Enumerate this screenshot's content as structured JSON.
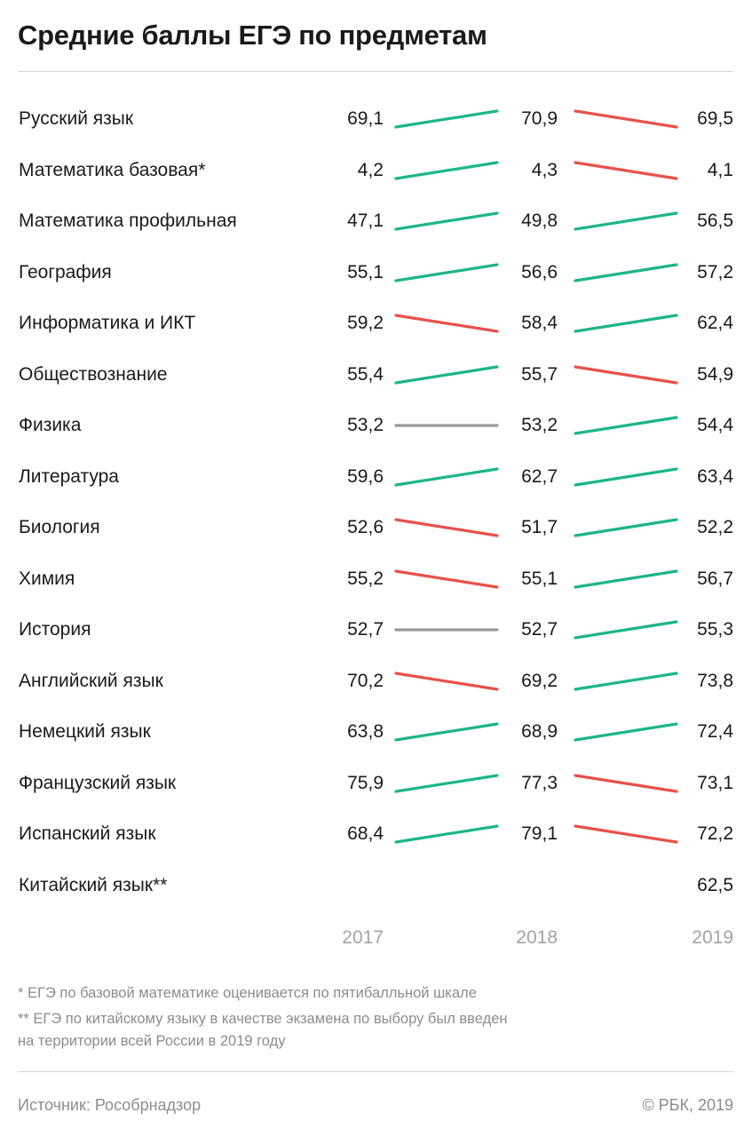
{
  "title": "Средние баллы ЕГЭ по предметам",
  "colors": {
    "up": "#1db58a",
    "down": "#e8514a",
    "flat": "#999999"
  },
  "chart_data": {
    "type": "line",
    "x": [
      "2017",
      "2018",
      "2019"
    ],
    "series": [
      {
        "name": "Русский язык",
        "values": [
          69.1,
          70.9,
          69.5
        ],
        "labels": [
          "69,1",
          "70,9",
          "69,5"
        ]
      },
      {
        "name": "Математика базовая*",
        "values": [
          4.2,
          4.3,
          4.1
        ],
        "labels": [
          "4,2",
          "4,3",
          "4,1"
        ]
      },
      {
        "name": "Математика профильная",
        "values": [
          47.1,
          49.8,
          56.5
        ],
        "labels": [
          "47,1",
          "49,8",
          "56,5"
        ]
      },
      {
        "name": "География",
        "values": [
          55.1,
          56.6,
          57.2
        ],
        "labels": [
          "55,1",
          "56,6",
          "57,2"
        ]
      },
      {
        "name": "Информатика и ИКТ",
        "values": [
          59.2,
          58.4,
          62.4
        ],
        "labels": [
          "59,2",
          "58,4",
          "62,4"
        ]
      },
      {
        "name": "Обществознание",
        "values": [
          55.4,
          55.7,
          54.9
        ],
        "labels": [
          "55,4",
          "55,7",
          "54,9"
        ]
      },
      {
        "name": "Физика",
        "values": [
          53.2,
          53.2,
          54.4
        ],
        "labels": [
          "53,2",
          "53,2",
          "54,4"
        ]
      },
      {
        "name": "Литература",
        "values": [
          59.6,
          62.7,
          63.4
        ],
        "labels": [
          "59,6",
          "62,7",
          "63,4"
        ]
      },
      {
        "name": "Биология",
        "values": [
          52.6,
          51.7,
          52.2
        ],
        "labels": [
          "52,6",
          "51,7",
          "52,2"
        ]
      },
      {
        "name": "Химия",
        "values": [
          55.2,
          55.1,
          56.7
        ],
        "labels": [
          "55,2",
          "55,1",
          "56,7"
        ]
      },
      {
        "name": "История",
        "values": [
          52.7,
          52.7,
          55.3
        ],
        "labels": [
          "52,7",
          "52,7",
          "55,3"
        ]
      },
      {
        "name": "Английский язык",
        "values": [
          70.2,
          69.2,
          73.8
        ],
        "labels": [
          "70,2",
          "69,2",
          "73,8"
        ]
      },
      {
        "name": "Немецкий язык",
        "values": [
          63.8,
          68.9,
          72.4
        ],
        "labels": [
          "63,8",
          "68,9",
          "72,4"
        ]
      },
      {
        "name": "Французский язык",
        "values": [
          75.9,
          77.3,
          73.1
        ],
        "labels": [
          "75,9",
          "77,3",
          "73,1"
        ]
      },
      {
        "name": "Испанский язык",
        "values": [
          68.4,
          79.1,
          72.2
        ],
        "labels": [
          "68,4",
          "79,1",
          "72,2"
        ]
      },
      {
        "name": "Китайский язык**",
        "values": [
          null,
          null,
          62.5
        ],
        "labels": [
          "",
          "",
          "62,5"
        ]
      }
    ]
  },
  "notes": [
    "* ЕГЭ по базовой математике оценивается по пятибалльной шкале",
    "** ЕГЭ по китайскому языку в качестве экзамена по выбору был введен\nна территории всей России в 2019 году"
  ],
  "footer": {
    "source": "Источник: Рособрнадзор",
    "copyright": "© РБК, 2019"
  }
}
